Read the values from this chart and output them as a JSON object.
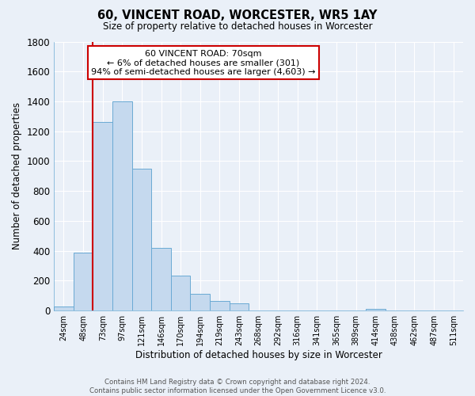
{
  "title": "60, VINCENT ROAD, WORCESTER, WR5 1AY",
  "subtitle": "Size of property relative to detached houses in Worcester",
  "xlabel": "Distribution of detached houses by size in Worcester",
  "ylabel": "Number of detached properties",
  "bar_labels": [
    "24sqm",
    "48sqm",
    "73sqm",
    "97sqm",
    "121sqm",
    "146sqm",
    "170sqm",
    "194sqm",
    "219sqm",
    "243sqm",
    "268sqm",
    "292sqm",
    "316sqm",
    "341sqm",
    "365sqm",
    "389sqm",
    "414sqm",
    "438sqm",
    "462sqm",
    "487sqm",
    "511sqm"
  ],
  "bar_values": [
    25,
    390,
    1260,
    1400,
    950,
    420,
    235,
    110,
    65,
    50,
    0,
    0,
    0,
    0,
    0,
    0,
    12,
    0,
    0,
    0,
    0
  ],
  "bar_color": "#c5d9ee",
  "bar_edge_color": "#6aaad4",
  "vline_color": "#cc0000",
  "vline_position": 1.5,
  "ylim": [
    0,
    1800
  ],
  "yticks": [
    0,
    200,
    400,
    600,
    800,
    1000,
    1200,
    1400,
    1600,
    1800
  ],
  "annotation_title": "60 VINCENT ROAD: 70sqm",
  "annotation_line1": "← 6% of detached houses are smaller (301)",
  "annotation_line2": "94% of semi-detached houses are larger (4,603) →",
  "annotation_box_facecolor": "#ffffff",
  "annotation_box_edgecolor": "#cc0000",
  "footer_line1": "Contains HM Land Registry data © Crown copyright and database right 2024.",
  "footer_line2": "Contains public sector information licensed under the Open Government Licence v3.0.",
  "bg_color": "#eaf0f8",
  "grid_color": "#ffffff",
  "spine_color": "#6aaad4"
}
